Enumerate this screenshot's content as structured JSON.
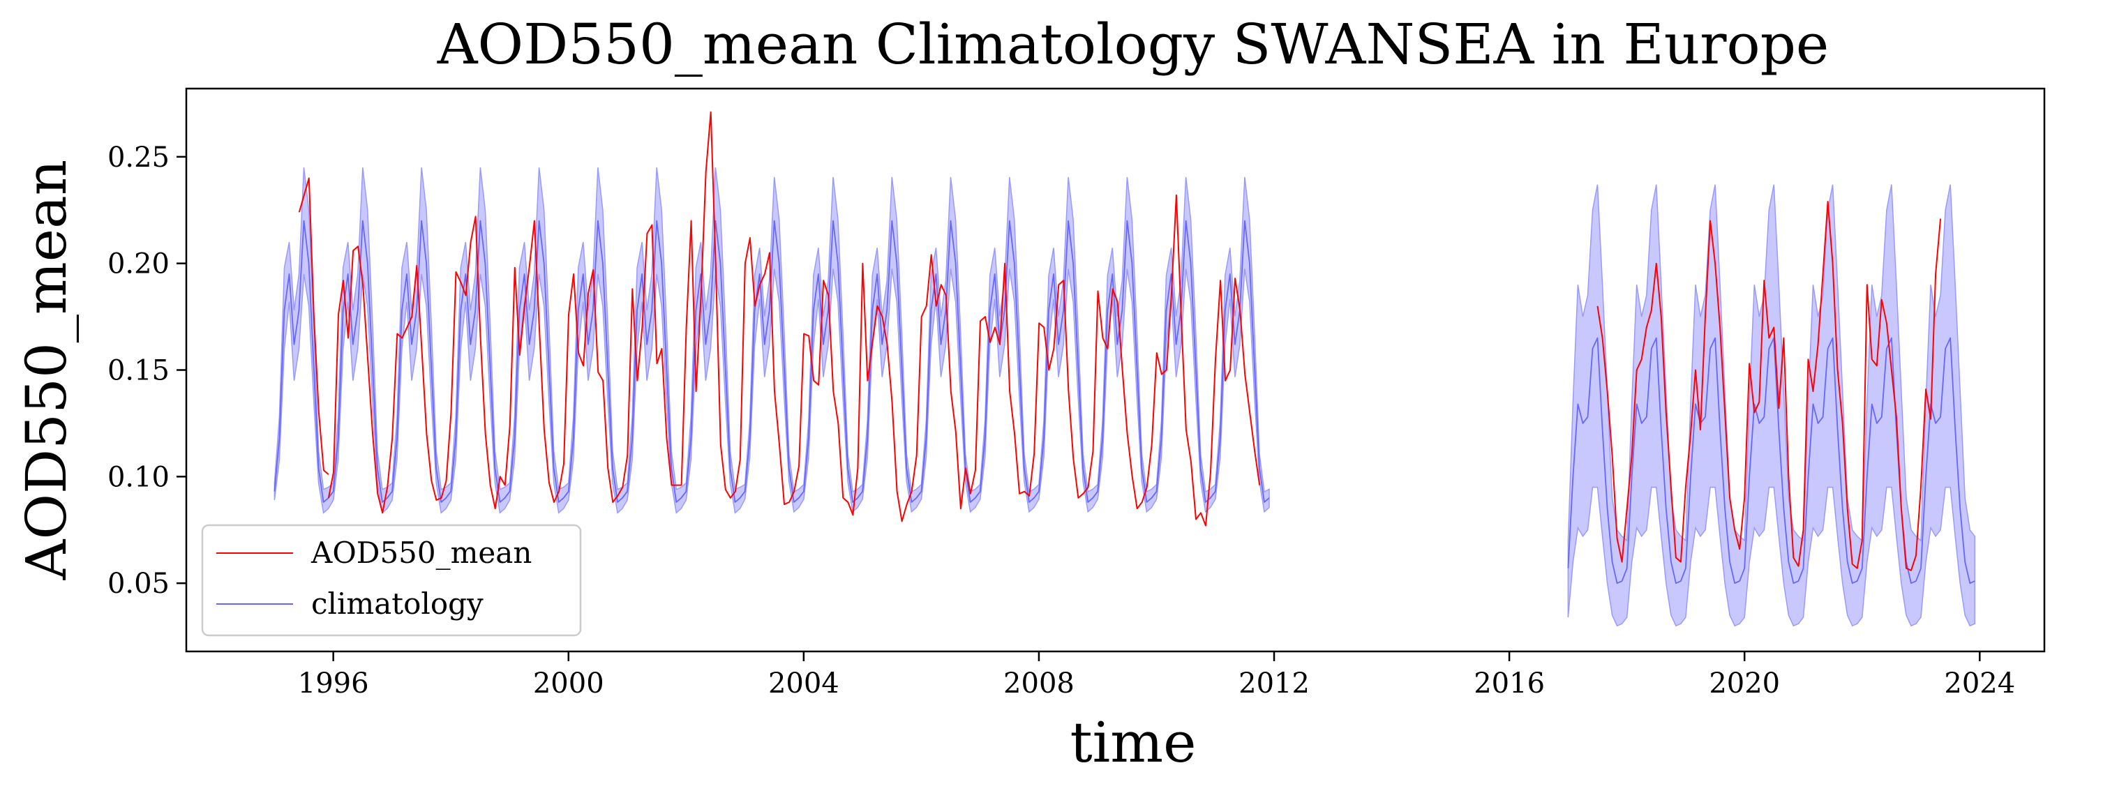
{
  "chart_data": {
    "type": "line",
    "title": "AOD550_mean Climatology SWANSEA in Europe",
    "xlabel": "time",
    "ylabel": "AOD550_mean",
    "xlim": [
      1993.5,
      2025.1
    ],
    "ylim": [
      0.018,
      0.282
    ],
    "x_ticks": [
      1996,
      2000,
      2004,
      2008,
      2012,
      2016,
      2020,
      2024
    ],
    "x_tick_labels": [
      "1996",
      "2000",
      "2004",
      "2008",
      "2012",
      "2016",
      "2020",
      "2024"
    ],
    "y_ticks": [
      0.05,
      0.1,
      0.15,
      0.2,
      0.25
    ],
    "y_tick_labels": [
      "0.05",
      "0.10",
      "0.15",
      "0.20",
      "0.25"
    ],
    "grid": false,
    "legend": {
      "position": "lower-left",
      "entries": [
        {
          "label": "AOD550_mean",
          "color": "#ff0000"
        },
        {
          "label": "climatology",
          "color": "#6666ff"
        }
      ]
    },
    "colors": {
      "observed": "#ff0000",
      "climatology": "#6666ff",
      "band": "#c8c8ff",
      "band_edge": "#9999ff"
    },
    "climatology_periods": [
      {
        "start": 1995.0,
        "end": 2011.92,
        "monthly_mean": [
          0.093,
          0.118,
          0.178,
          0.195,
          0.162,
          0.178,
          0.22,
          0.2,
          0.152,
          0.104,
          0.088,
          0.09
        ],
        "monthly_upper": [
          0.097,
          0.128,
          0.198,
          0.21,
          0.178,
          0.195,
          0.245,
          0.225,
          0.172,
          0.112,
          0.094,
          0.095
        ],
        "monthly_lower": [
          0.089,
          0.108,
          0.16,
          0.182,
          0.145,
          0.16,
          0.195,
          0.18,
          0.136,
          0.097,
          0.083,
          0.085
        ],
        "upper_scale_after_2003": 0.82,
        "lower_scale_after_2003": 0.9
      },
      {
        "start": 2017.0,
        "end": 2023.92,
        "monthly_mean": [
          0.057,
          0.1,
          0.134,
          0.125,
          0.128,
          0.16,
          0.165,
          0.122,
          0.085,
          0.06,
          0.05,
          0.051
        ],
        "monthly_upper": [
          0.07,
          0.135,
          0.19,
          0.175,
          0.185,
          0.225,
          0.237,
          0.19,
          0.14,
          0.09,
          0.075,
          0.072
        ],
        "monthly_lower": [
          0.034,
          0.06,
          0.076,
          0.072,
          0.075,
          0.095,
          0.095,
          0.072,
          0.05,
          0.035,
          0.03,
          0.031
        ]
      }
    ],
    "observed_segments": [
      {
        "start": 1995.42,
        "values": [
          0.224,
          0.232,
          0.24,
          0.175,
          0.13,
          0.103,
          0.101
        ]
      },
      {
        "start": 1995.92,
        "values": [
          0.09,
          0.102,
          0.176,
          0.192,
          0.165,
          0.206,
          0.208,
          0.19,
          0.155,
          0.12,
          0.092,
          0.083,
          0.095,
          0.118,
          0.167,
          0.165,
          0.17,
          0.175,
          0.199,
          0.16,
          0.12,
          0.098,
          0.089,
          0.09,
          0.098,
          0.13,
          0.196,
          0.191,
          0.185,
          0.21,
          0.222,
          0.165,
          0.12,
          0.096,
          0.085,
          0.1,
          0.096,
          0.124,
          0.198,
          0.157,
          0.18,
          0.199,
          0.22,
          0.17,
          0.122,
          0.097,
          0.088,
          0.093,
          0.106,
          0.176,
          0.195,
          0.158,
          0.152,
          0.186,
          0.197,
          0.149,
          0.145,
          0.104,
          0.088,
          0.091,
          0.095,
          0.11,
          0.188,
          0.145,
          0.17,
          0.214,
          0.218,
          0.153,
          0.16,
          0.118,
          0.096,
          0.096,
          0.096,
          0.17,
          0.22,
          0.14,
          0.185,
          0.243,
          0.271,
          0.2,
          0.115,
          0.094,
          0.09,
          0.093,
          0.108,
          0.2,
          0.212,
          0.18,
          0.19,
          0.195,
          0.205,
          0.14,
          0.115,
          0.087,
          0.088,
          0.093,
          0.105,
          0.167,
          0.166,
          0.145,
          0.143,
          0.192,
          0.185,
          0.14,
          0.125,
          0.09,
          0.088,
          0.082,
          0.104,
          0.2,
          0.145,
          0.163,
          0.18,
          0.175,
          0.162,
          0.135,
          0.093,
          0.079,
          0.087,
          0.093,
          0.11,
          0.175,
          0.18,
          0.204,
          0.18,
          0.19,
          0.185,
          0.14,
          0.121,
          0.085,
          0.104,
          0.092,
          0.103,
          0.173,
          0.175,
          0.163,
          0.17,
          0.162,
          0.2,
          0.14,
          0.12,
          0.092,
          0.093,
          0.091,
          0.111,
          0.172,
          0.17,
          0.15,
          0.16,
          0.19,
          0.192,
          0.14,
          0.108,
          0.09,
          0.092,
          0.095,
          0.112,
          0.187,
          0.165,
          0.16,
          0.188,
          0.182,
          0.15,
          0.12,
          0.1,
          0.085,
          0.088,
          0.095,
          0.115,
          0.158,
          0.148,
          0.15,
          0.185,
          0.232,
          0.175,
          0.122,
          0.107,
          0.08,
          0.083,
          0.077,
          0.102,
          0.155,
          0.192,
          0.145,
          0.15,
          0.193,
          0.178,
          0.148,
          0.13,
          0.112,
          0.096
        ]
      },
      {
        "start": 2017.5,
        "values": [
          0.18,
          0.165,
          0.14,
          0.11,
          0.071,
          0.06,
          0.085,
          0.11,
          0.15,
          0.155,
          0.17,
          0.178,
          0.2,
          0.175,
          0.13,
          0.095,
          0.062,
          0.06,
          0.095,
          0.12,
          0.15,
          0.122,
          0.175,
          0.22,
          0.2,
          0.17,
          0.13,
          0.09,
          0.075,
          0.066,
          0.09,
          0.153,
          0.13,
          0.135,
          0.192,
          0.165,
          0.17,
          0.132,
          0.165,
          0.1,
          0.062,
          0.058,
          0.075,
          0.155,
          0.14,
          0.162,
          0.195,
          0.229,
          0.2,
          0.15,
          0.125,
          0.085,
          0.059,
          0.057,
          0.07,
          0.19,
          0.155,
          0.152,
          0.183,
          0.172,
          0.15,
          0.128,
          0.085,
          0.057,
          0.056,
          0.063,
          0.095,
          0.141,
          0.127,
          0.195,
          0.221
        ]
      }
    ]
  }
}
